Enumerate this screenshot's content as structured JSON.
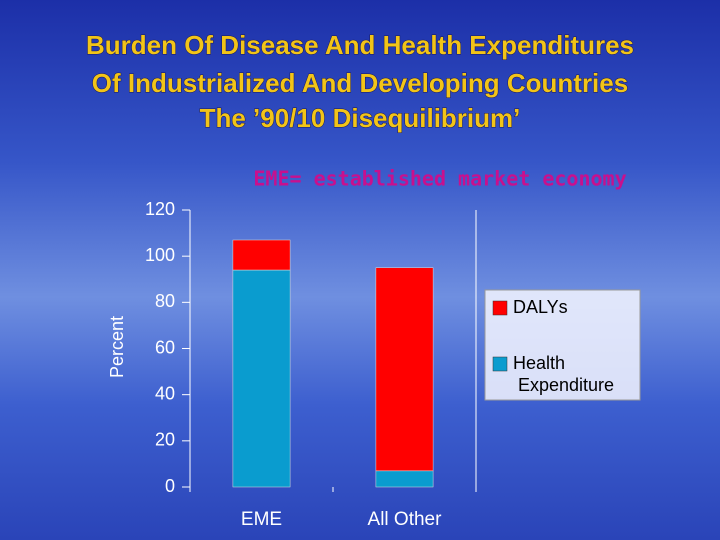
{
  "chart_data": {
    "type": "stacked_bar",
    "title": [
      "Burden Of Disease And Health Expenditures",
      "Of Industrialized And Developing Countries",
      "The ’90/10 Disequilibrium’"
    ],
    "subtitle": "EME= established market economy",
    "y_label": "Percent",
    "categories": [
      "EME",
      "All Other"
    ],
    "series": [
      {
        "name": "Health Expenditure",
        "color": "#0a9ccf",
        "values": [
          94,
          7
        ]
      },
      {
        "name": "DALYs",
        "color": "#ff0000",
        "values": [
          13,
          88
        ]
      }
    ],
    "legend_order": [
      1,
      0
    ],
    "ylim": [
      0,
      120
    ],
    "yticks": [
      0,
      20,
      40,
      60,
      80,
      100,
      120
    ]
  }
}
